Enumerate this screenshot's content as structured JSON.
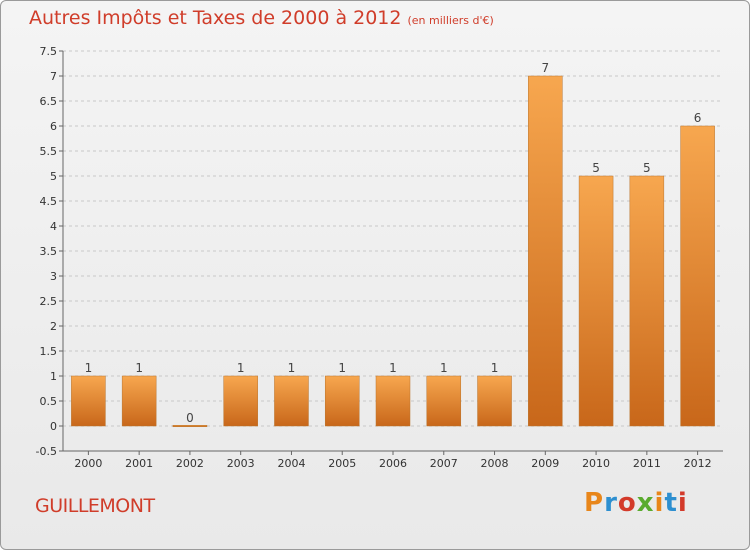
{
  "header": {
    "title": "Autres Impôts et Taxes de 2000 à 2012",
    "subtitle": "(en milliers d'€)"
  },
  "footer": {
    "commune": "GUILLEMONT",
    "logo_text": "Proxiti",
    "logo_colors": [
      "#e8861a",
      "#2d8fd0",
      "#d33a2a",
      "#5aab2e",
      "#e8861a",
      "#2d8fd0",
      "#d33a2a"
    ]
  },
  "colors": {
    "bar_top": "#f7a74f",
    "bar_bottom": "#c8671a",
    "title": "#d03d2a",
    "grid": "#c8c8c8"
  },
  "chart_data": {
    "type": "bar",
    "title": "Autres Impôts et Taxes de 2000 à 2012",
    "subtitle": "(en milliers d'€)",
    "categories": [
      "2000",
      "2001",
      "2002",
      "2003",
      "2004",
      "2005",
      "2006",
      "2007",
      "2008",
      "2009",
      "2010",
      "2011",
      "2012"
    ],
    "values": [
      1,
      1,
      0,
      1,
      1,
      1,
      1,
      1,
      1,
      7,
      5,
      5,
      6
    ],
    "data_labels": [
      "1",
      "1",
      "0",
      "1",
      "1",
      "1",
      "1",
      "1",
      "1",
      "7",
      "5",
      "5",
      "6"
    ],
    "ylim": [
      -0.5,
      7.5
    ],
    "yticks": [
      -0.5,
      0,
      0.5,
      1,
      1.5,
      2,
      2.5,
      3,
      3.5,
      4,
      4.5,
      5,
      5.5,
      6,
      6.5,
      7,
      7.5
    ],
    "ytick_labels": [
      "-0.5",
      "0",
      "0.5",
      "1",
      "1.5",
      "2",
      "2.5",
      "3",
      "3.5",
      "4",
      "4.5",
      "5",
      "5.5",
      "6",
      "6.5",
      "7",
      "7.5"
    ],
    "grid": true,
    "xlabel": "",
    "ylabel": ""
  }
}
